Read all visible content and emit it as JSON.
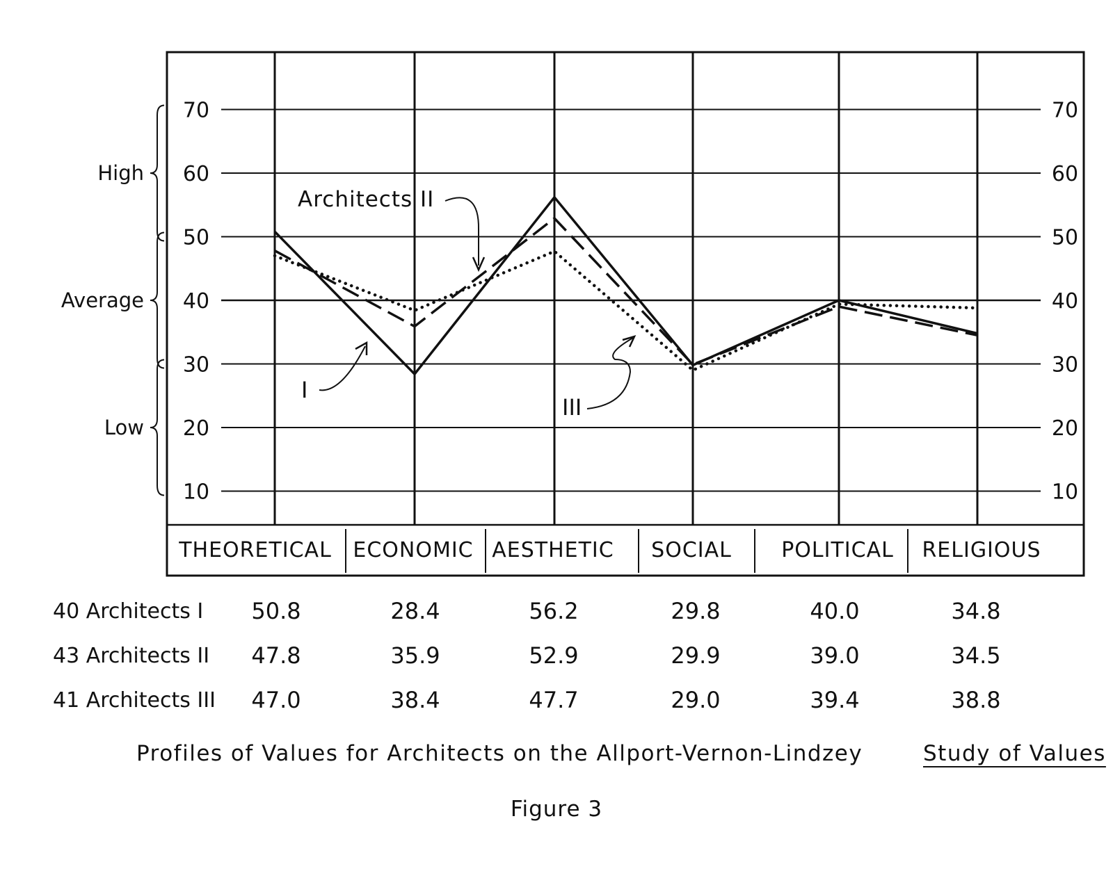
{
  "chart_data": {
    "type": "line",
    "categories": [
      "THEORETICAL",
      "ECONOMIC",
      "AESTHETIC",
      "SOCIAL",
      "POLITICAL",
      "RELIGIOUS"
    ],
    "series": [
      {
        "name": "I",
        "style": "solid",
        "values": [
          50.8,
          28.4,
          56.2,
          29.8,
          40.0,
          34.8
        ]
      },
      {
        "name": "Architects II",
        "style": "dashed",
        "values": [
          47.8,
          35.9,
          52.9,
          29.9,
          39.0,
          34.5
        ]
      },
      {
        "name": "III",
        "style": "dotted",
        "values": [
          47.0,
          38.4,
          47.7,
          29.0,
          39.4,
          38.8
        ]
      }
    ],
    "yticks": [
      10,
      20,
      30,
      40,
      50,
      60,
      70
    ],
    "ylim": [
      3,
      81
    ],
    "bands": [
      {
        "label": "High",
        "range": [
          50,
          70
        ]
      },
      {
        "label": "Average",
        "range": [
          30,
          50
        ]
      },
      {
        "label": "Low",
        "range": [
          10,
          30
        ]
      }
    ],
    "annotations": [
      "Architects II",
      "I",
      "III"
    ],
    "grid": true,
    "colors": {
      "ink": "#111111",
      "background": "#ffffff"
    }
  },
  "table": {
    "rows": [
      {
        "label": "40 Architects I",
        "values": [
          "50.8",
          "28.4",
          "56.2",
          "29.8",
          "40.0",
          "34.8"
        ]
      },
      {
        "label": "43 Architects II",
        "values": [
          "47.8",
          "35.9",
          "52.9",
          "29.9",
          "39.0",
          "34.5"
        ]
      },
      {
        "label": "41 Architects III",
        "values": [
          "47.0",
          "38.4",
          "47.7",
          "29.0",
          "39.4",
          "38.8"
        ]
      }
    ]
  },
  "caption": {
    "main": "Profiles of Values for Architects on the Allport-Vernon-Lindzey",
    "underlined": "Study of Values",
    "figure": "Figure 3"
  }
}
